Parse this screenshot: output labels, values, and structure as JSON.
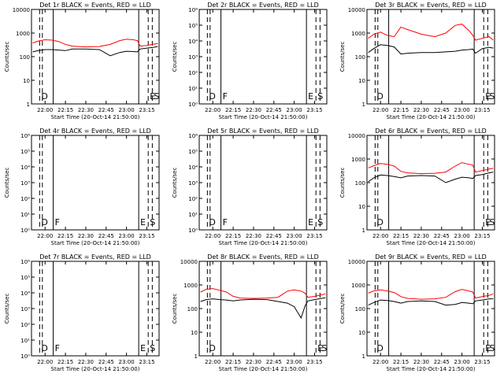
{
  "x_ticks": [
    "22:00",
    "22:15",
    "22:30",
    "22:45",
    "23:00",
    "23:15"
  ],
  "ylabel": "Counts/sec",
  "xlabel": "Start Time (20-Oct-14 21:50:00)",
  "colors": {
    "events": "#000000",
    "lld": "#ff0000",
    "frame": "#000000"
  },
  "chart_data": [
    {
      "type": "line",
      "title": "Det 1r BLACK = Events, RED = LLD",
      "ylabel": "Counts/sec",
      "xlabel": "Start Time (20-Oct-14 21:50:00)",
      "scale": "log",
      "ylim": [
        1,
        10000
      ],
      "y_ticks": [
        "10000",
        "1000",
        "100",
        "10",
        "1"
      ],
      "x_ticks": [
        "22:00",
        "22:15",
        "22:30",
        "22:45",
        "23:00",
        "23:15"
      ],
      "markers": [
        {
          "x": "21:56",
          "label": "D",
          "style": "dashed"
        },
        {
          "x": "21:58",
          "label": "",
          "style": "dashed"
        },
        {
          "x": "22:06",
          "label": "",
          "style": "solid"
        },
        {
          "x": "23:09",
          "label": "",
          "style": "solid"
        },
        {
          "x": "23:16",
          "label": "E",
          "style": "dashed"
        },
        {
          "x": "23:19",
          "label": "S",
          "style": "dashed"
        }
      ],
      "series": [
        {
          "name": "LLD",
          "color": "#ff0000",
          "x": [
            "21:51",
            "21:55",
            "22:00",
            "22:05",
            "22:10",
            "22:15",
            "22:20",
            "22:30",
            "22:40",
            "22:48",
            "22:55",
            "23:00",
            "23:05",
            "23:08",
            "23:10",
            "23:15",
            "23:20",
            "23:23"
          ],
          "y": [
            380,
            460,
            520,
            500,
            440,
            330,
            280,
            260,
            270,
            330,
            480,
            550,
            520,
            480,
            280,
            300,
            340,
            360
          ]
        },
        {
          "name": "Events",
          "color": "#000000",
          "x": [
            "21:51",
            "21:55",
            "22:00",
            "22:05",
            "22:10",
            "22:15",
            "22:20",
            "22:30",
            "22:40",
            "22:48",
            "22:55",
            "23:00",
            "23:05",
            "23:08",
            "23:10",
            "23:15",
            "23:20",
            "23:23"
          ],
          "y": [
            160,
            180,
            200,
            200,
            190,
            180,
            210,
            210,
            200,
            110,
            150,
            170,
            165,
            160,
            210,
            230,
            250,
            270
          ]
        }
      ]
    },
    {
      "type": "line",
      "title": "Det 2r BLACK = Events, RED = LLD",
      "ylabel": "Counts/sec",
      "xlabel": "Start Time (20-Oct-14 21:50:00)",
      "scale": "log",
      "ylim": [
        1,
        1000000
      ],
      "y_ticks": [
        "10⁶",
        "10⁵",
        "10⁴",
        "10³",
        "10²",
        "10¹",
        "10⁰"
      ],
      "x_ticks": [
        "22:00",
        "22:15",
        "22:30",
        "22:45",
        "23:00",
        "23:15"
      ],
      "markers": [
        {
          "x": "21:56",
          "label": "D",
          "style": "dashed"
        },
        {
          "x": "21:58",
          "label": "",
          "style": "dashed"
        },
        {
          "x": "22:06",
          "label": "F",
          "style": "solid"
        },
        {
          "x": "23:09",
          "label": "E",
          "style": "solid"
        },
        {
          "x": "23:16",
          "label": "S",
          "style": "dashed"
        },
        {
          "x": "23:19",
          "label": "",
          "style": "dashed"
        }
      ],
      "series": []
    },
    {
      "type": "line",
      "title": "Det 3r BLACK = Events, RED = LLD",
      "ylabel": "Counts/sec",
      "xlabel": "Start Time (20-Oct-14 21:50:00)",
      "scale": "log",
      "ylim": [
        1,
        10000
      ],
      "y_ticks": [
        "10000",
        "1000",
        "100",
        "10",
        "1"
      ],
      "x_ticks": [
        "22:00",
        "22:15",
        "22:30",
        "22:45",
        "23:00",
        "23:15"
      ],
      "markers": [
        {
          "x": "21:56",
          "label": "D",
          "style": "dashed"
        },
        {
          "x": "21:58",
          "label": "",
          "style": "dashed"
        },
        {
          "x": "22:06",
          "label": "",
          "style": "solid"
        },
        {
          "x": "23:09",
          "label": "",
          "style": "solid"
        },
        {
          "x": "23:16",
          "label": "E",
          "style": "dashed"
        },
        {
          "x": "23:19",
          "label": "S",
          "style": "dashed"
        }
      ],
      "series": [
        {
          "name": "LLD",
          "color": "#ff0000",
          "x": [
            "21:51",
            "21:55",
            "22:00",
            "22:05",
            "22:10",
            "22:15",
            "22:20",
            "22:30",
            "22:40",
            "22:48",
            "22:55",
            "23:00",
            "23:05",
            "23:08",
            "23:10",
            "23:15",
            "23:20",
            "23:23"
          ],
          "y": [
            600,
            900,
            1100,
            800,
            700,
            1800,
            1400,
            900,
            700,
            1000,
            2100,
            2400,
            1300,
            800,
            500,
            600,
            700,
            500
          ]
        },
        {
          "name": "Events",
          "color": "#000000",
          "x": [
            "21:51",
            "21:55",
            "22:00",
            "22:05",
            "22:10",
            "22:15",
            "22:20",
            "22:30",
            "22:40",
            "22:48",
            "22:55",
            "23:00",
            "23:05",
            "23:08",
            "23:10",
            "23:15",
            "23:20",
            "23:23"
          ],
          "y": [
            150,
            220,
            320,
            300,
            260,
            130,
            140,
            150,
            150,
            160,
            170,
            190,
            200,
            210,
            140,
            220,
            250,
            230
          ]
        }
      ]
    },
    {
      "type": "line",
      "title": "Det 4r BLACK = Events, RED = LLD",
      "ylabel": "Counts/sec",
      "xlabel": "Start Time (20-Oct-14 21:50:00)",
      "scale": "log",
      "ylim": [
        1,
        1000000
      ],
      "y_ticks": [
        "10⁶",
        "10⁵",
        "10⁴",
        "10³",
        "10²",
        "10¹",
        "10⁰"
      ],
      "x_ticks": [
        "22:00",
        "22:15",
        "22:30",
        "22:45",
        "23:00",
        "23:15"
      ],
      "markers": [
        {
          "x": "21:56",
          "label": "D",
          "style": "dashed"
        },
        {
          "x": "21:58",
          "label": "",
          "style": "dashed"
        },
        {
          "x": "22:06",
          "label": "F",
          "style": "solid"
        },
        {
          "x": "23:09",
          "label": "E",
          "style": "solid"
        },
        {
          "x": "23:16",
          "label": "S",
          "style": "dashed"
        },
        {
          "x": "23:19",
          "label": "",
          "style": "dashed"
        }
      ],
      "series": []
    },
    {
      "type": "line",
      "title": "Det 5r BLACK = Events, RED = LLD",
      "ylabel": "Counts/sec",
      "xlabel": "Start Time (20-Oct-14 21:50:00)",
      "scale": "log",
      "ylim": [
        1,
        1000000
      ],
      "y_ticks": [
        "10⁶",
        "10⁵",
        "10⁴",
        "10³",
        "10²",
        "10¹",
        "10⁰"
      ],
      "x_ticks": [
        "22:00",
        "22:15",
        "22:30",
        "22:45",
        "23:00",
        "23:15"
      ],
      "markers": [
        {
          "x": "21:56",
          "label": "D",
          "style": "dashed"
        },
        {
          "x": "21:58",
          "label": "",
          "style": "dashed"
        },
        {
          "x": "22:06",
          "label": "F",
          "style": "solid"
        },
        {
          "x": "23:09",
          "label": "E",
          "style": "solid"
        },
        {
          "x": "23:16",
          "label": "S",
          "style": "dashed"
        },
        {
          "x": "23:19",
          "label": "",
          "style": "dashed"
        }
      ],
      "series": []
    },
    {
      "type": "line",
      "title": "Det 6r BLACK = Events, RED = LLD",
      "ylabel": "Counts/sec",
      "xlabel": "Start Time (20-Oct-14 21:50:00)",
      "scale": "log",
      "ylim": [
        1,
        10000
      ],
      "y_ticks": [
        "10000",
        "1000",
        "100",
        "10",
        "1"
      ],
      "x_ticks": [
        "22:00",
        "22:15",
        "22:30",
        "22:45",
        "23:00",
        "23:15"
      ],
      "markers": [
        {
          "x": "21:56",
          "label": "D",
          "style": "dashed"
        },
        {
          "x": "21:58",
          "label": "",
          "style": "dashed"
        },
        {
          "x": "22:06",
          "label": "",
          "style": "solid"
        },
        {
          "x": "23:09",
          "label": "",
          "style": "solid"
        },
        {
          "x": "23:16",
          "label": "E",
          "style": "dashed"
        },
        {
          "x": "23:19",
          "label": "S",
          "style": "dashed"
        }
      ],
      "series": [
        {
          "name": "LLD",
          "color": "#ff0000",
          "x": [
            "21:51",
            "21:55",
            "22:00",
            "22:05",
            "22:10",
            "22:15",
            "22:20",
            "22:30",
            "22:40",
            "22:48",
            "22:55",
            "23:00",
            "23:05",
            "23:08",
            "23:10",
            "23:15",
            "23:20",
            "23:23"
          ],
          "y": [
            420,
            520,
            650,
            600,
            500,
            300,
            260,
            240,
            250,
            280,
            500,
            700,
            600,
            550,
            280,
            320,
            380,
            400
          ]
        },
        {
          "name": "Events",
          "color": "#000000",
          "x": [
            "21:51",
            "21:55",
            "22:00",
            "22:05",
            "22:10",
            "22:15",
            "22:20",
            "22:30",
            "22:40",
            "22:48",
            "22:55",
            "23:00",
            "23:05",
            "23:08",
            "23:10",
            "23:15",
            "23:20",
            "23:23"
          ],
          "y": [
            110,
            160,
            210,
            200,
            180,
            160,
            190,
            200,
            190,
            100,
            140,
            170,
            160,
            150,
            200,
            220,
            260,
            280
          ]
        }
      ]
    },
    {
      "type": "line",
      "title": "Det 7r BLACK = Events, RED = LLD",
      "ylabel": "Counts/sec",
      "xlabel": "Start Time (20-Oct-14 21:50:00)",
      "scale": "log",
      "ylim": [
        1,
        1000000
      ],
      "y_ticks": [
        "10⁶",
        "10⁵",
        "10⁴",
        "10³",
        "10²",
        "10¹",
        "10⁰"
      ],
      "x_ticks": [
        "22:00",
        "22:15",
        "22:30",
        "22:45",
        "23:00",
        "23:15"
      ],
      "markers": [
        {
          "x": "21:56",
          "label": "D",
          "style": "dashed"
        },
        {
          "x": "21:58",
          "label": "",
          "style": "dashed"
        },
        {
          "x": "22:06",
          "label": "F",
          "style": "solid"
        },
        {
          "x": "23:09",
          "label": "E",
          "style": "solid"
        },
        {
          "x": "23:16",
          "label": "S",
          "style": "dashed"
        },
        {
          "x": "23:19",
          "label": "",
          "style": "dashed"
        }
      ],
      "series": []
    },
    {
      "type": "line",
      "title": "Det 8r BLACK = Events, RED = LLD",
      "ylabel": "Counts/sec",
      "xlabel": "Start Time (20-Oct-14 21:50:00)",
      "scale": "log",
      "ylim": [
        1,
        10000
      ],
      "y_ticks": [
        "10000",
        "1000",
        "100",
        "10",
        "1"
      ],
      "x_ticks": [
        "22:00",
        "22:15",
        "22:30",
        "22:45",
        "23:00",
        "23:15"
      ],
      "markers": [
        {
          "x": "21:56",
          "label": "D",
          "style": "dashed"
        },
        {
          "x": "21:58",
          "label": "",
          "style": "dashed"
        },
        {
          "x": "22:06",
          "label": "",
          "style": "solid"
        },
        {
          "x": "23:09",
          "label": "",
          "style": "solid"
        },
        {
          "x": "23:16",
          "label": "E",
          "style": "dashed"
        },
        {
          "x": "23:19",
          "label": "S",
          "style": "dashed"
        }
      ],
      "series": [
        {
          "name": "LLD",
          "color": "#ff0000",
          "x": [
            "21:51",
            "21:55",
            "22:00",
            "22:05",
            "22:10",
            "22:15",
            "22:20",
            "22:30",
            "22:40",
            "22:48",
            "22:55",
            "23:00",
            "23:05",
            "23:08",
            "23:10",
            "23:15",
            "23:20",
            "23:23"
          ],
          "y": [
            500,
            650,
            700,
            600,
            500,
            330,
            280,
            270,
            280,
            300,
            550,
            620,
            550,
            450,
            300,
            330,
            380,
            420
          ]
        },
        {
          "name": "Events",
          "color": "#000000",
          "x": [
            "21:51",
            "21:55",
            "22:00",
            "22:05",
            "22:10",
            "22:15",
            "22:20",
            "22:30",
            "22:40",
            "22:48",
            "22:55",
            "23:00",
            "23:05",
            "23:08",
            "23:10",
            "23:15",
            "23:20",
            "23:23"
          ],
          "y": [
            200,
            240,
            260,
            240,
            230,
            210,
            230,
            250,
            240,
            200,
            170,
            120,
            40,
            130,
            210,
            240,
            270,
            290
          ]
        }
      ]
    },
    {
      "type": "line",
      "title": "Det 9r BLACK = Events, RED = LLD",
      "ylabel": "Counts/sec",
      "xlabel": "Start Time (20-Oct-14 21:50:00)",
      "scale": "log",
      "ylim": [
        1,
        10000
      ],
      "y_ticks": [
        "10000",
        "1000",
        "100",
        "10",
        "1"
      ],
      "x_ticks": [
        "22:00",
        "22:15",
        "22:30",
        "22:45",
        "23:00",
        "23:15"
      ],
      "markers": [
        {
          "x": "21:56",
          "label": "D",
          "style": "dashed"
        },
        {
          "x": "21:58",
          "label": "",
          "style": "dashed"
        },
        {
          "x": "22:06",
          "label": "",
          "style": "solid"
        },
        {
          "x": "23:09",
          "label": "",
          "style": "solid"
        },
        {
          "x": "23:16",
          "label": "E",
          "style": "dashed"
        },
        {
          "x": "23:19",
          "label": "S",
          "style": "dashed"
        }
      ],
      "series": [
        {
          "name": "LLD",
          "color": "#ff0000",
          "x": [
            "21:51",
            "21:55",
            "22:00",
            "22:05",
            "22:10",
            "22:15",
            "22:20",
            "22:30",
            "22:40",
            "22:48",
            "22:55",
            "23:00",
            "23:05",
            "23:08",
            "23:10",
            "23:15",
            "23:20",
            "23:23"
          ],
          "y": [
            450,
            560,
            620,
            560,
            480,
            320,
            270,
            250,
            260,
            300,
            520,
            650,
            560,
            500,
            280,
            320,
            360,
            420
          ]
        },
        {
          "name": "Events",
          "color": "#000000",
          "x": [
            "21:51",
            "21:55",
            "22:00",
            "22:05",
            "22:10",
            "22:15",
            "22:20",
            "22:30",
            "22:40",
            "22:48",
            "22:55",
            "23:00",
            "23:05",
            "23:08",
            "23:10",
            "23:15",
            "23:20",
            "23:23"
          ],
          "y": [
            140,
            180,
            230,
            220,
            200,
            170,
            200,
            210,
            200,
            140,
            150,
            180,
            170,
            160,
            210,
            230,
            260,
            260
          ]
        }
      ]
    }
  ]
}
